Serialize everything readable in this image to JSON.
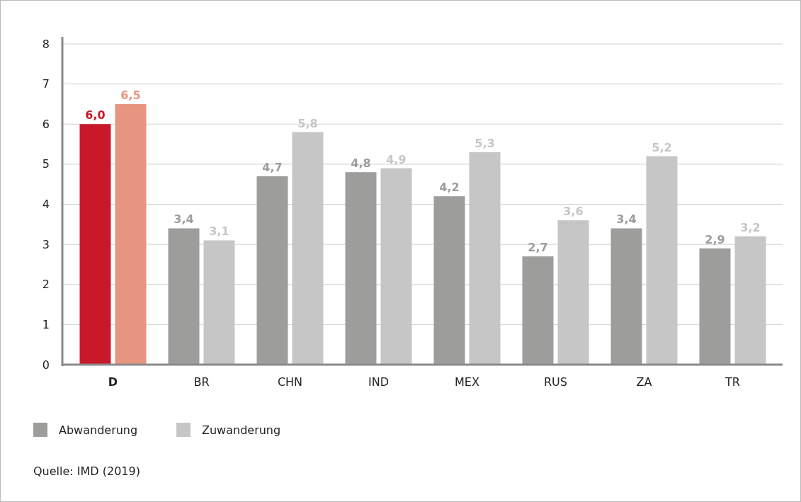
{
  "chart_data": {
    "type": "bar",
    "categories": [
      "D",
      "BR",
      "CHN",
      "IND",
      "MEX",
      "RUS",
      "ZA",
      "TR"
    ],
    "series": [
      {
        "name": "Abwanderung",
        "color": "#9d9d9c",
        "colors": [
          "#c8192b",
          "#9d9d9c",
          "#9d9d9c",
          "#9d9d9c",
          "#9d9d9c",
          "#9d9d9c",
          "#9d9d9c",
          "#9d9d9c"
        ],
        "values": [
          6.0,
          3.4,
          4.7,
          4.8,
          4.2,
          2.7,
          3.4,
          2.9
        ],
        "value_labels": [
          "6,0",
          "3,4",
          "4,7",
          "4,8",
          "4,2",
          "2,7",
          "3,4",
          "2,9"
        ]
      },
      {
        "name": "Zuwanderung",
        "color": "#c6c6c6",
        "colors": [
          "#e69580",
          "#c6c6c6",
          "#c6c6c6",
          "#c6c6c6",
          "#c6c6c6",
          "#c6c6c6",
          "#c6c6c6",
          "#c6c6c6"
        ],
        "values": [
          6.5,
          3.1,
          5.8,
          4.9,
          5.3,
          3.6,
          5.2,
          3.2
        ],
        "value_labels": [
          "6,5",
          "3,1",
          "5,8",
          "4,9",
          "5,3",
          "3,6",
          "5,2",
          "3,2"
        ]
      }
    ],
    "ylim": [
      0,
      8
    ],
    "yticks": [
      0,
      1,
      2,
      3,
      4,
      5,
      6,
      7,
      8
    ],
    "grid": "y",
    "legend": "bottom left",
    "annotations": [
      "Quelle: IMD (2019)"
    ]
  }
}
